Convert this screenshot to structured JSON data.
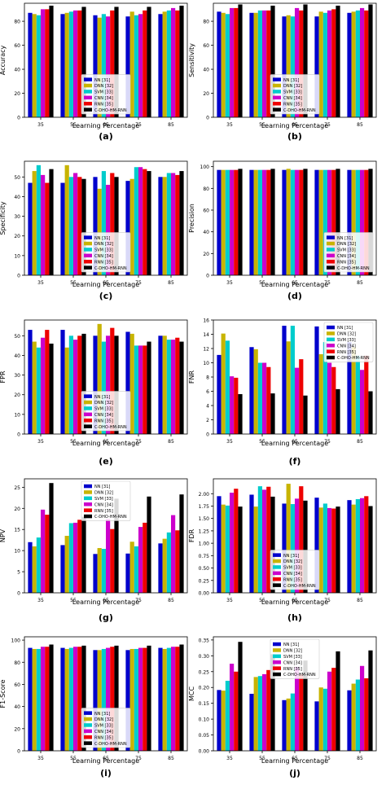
{
  "figure": {
    "series_colors": [
      "#0000cc",
      "#c8b400",
      "#00cccc",
      "#cc00cc",
      "#ee0000",
      "#000000"
    ],
    "legend_labels": [
      "NN [31]",
      "DNN [32]",
      "SVM [33]",
      "CNN [34]",
      "RNN [35]",
      "C-DHO-HM-RNN"
    ]
  },
  "chart_data": [
    {
      "type": "bar",
      "panel_label": "(a)",
      "ylabel": "Accuracy",
      "xlabel": "Learning Percentage",
      "categories": [
        "35",
        "55",
        "65",
        "75",
        "85"
      ],
      "ylim": [
        0,
        95
      ],
      "yticks": [
        0,
        20,
        40,
        60,
        80
      ],
      "ytick_labels": [
        "0",
        "20",
        "40",
        "60",
        "80"
      ],
      "legend_position": "bottom-center",
      "series": [
        {
          "name": "NN [31]",
          "values": [
            87,
            86,
            85,
            84,
            86
          ]
        },
        {
          "name": "DNN [32]",
          "values": [
            86,
            87,
            83,
            88,
            88
          ]
        },
        {
          "name": "SVM [33]",
          "values": [
            85,
            88,
            86,
            85,
            89
          ]
        },
        {
          "name": "CNN [34]",
          "values": [
            90,
            89,
            84,
            86,
            91
          ]
        },
        {
          "name": "RNN [35]",
          "values": [
            90,
            89,
            89,
            89,
            89
          ]
        },
        {
          "name": "C-DHO-HM-RNN",
          "values": [
            93,
            92,
            92,
            92,
            93
          ]
        }
      ]
    },
    {
      "type": "bar",
      "panel_label": "(b)",
      "ylabel": "Sensitivity",
      "xlabel": "Learning Percentage",
      "categories": [
        "35",
        "55",
        "65",
        "75",
        "85"
      ],
      "ylim": [
        0,
        95
      ],
      "yticks": [
        0,
        20,
        40,
        60,
        80
      ],
      "ytick_labels": [
        "0",
        "20",
        "40",
        "60",
        "80"
      ],
      "legend_position": "bottom-center",
      "series": [
        {
          "name": "NN [31]",
          "values": [
            88,
            87,
            84,
            84,
            87
          ]
        },
        {
          "name": "DNN [32]",
          "values": [
            87,
            87,
            85,
            88,
            88
          ]
        },
        {
          "name": "SVM [33]",
          "values": [
            86,
            89,
            84,
            87,
            89
          ]
        },
        {
          "name": "CNN [34]",
          "values": [
            91,
            89,
            91,
            89,
            91
          ]
        },
        {
          "name": "RNN [35]",
          "values": [
            91,
            89,
            89,
            90,
            89
          ]
        },
        {
          "name": "C-DHO-HM-RNN",
          "values": [
            94,
            93,
            94,
            93,
            94
          ]
        }
      ]
    },
    {
      "type": "bar",
      "panel_label": "(c)",
      "ylabel": "Specificity",
      "xlabel": "Learning Percentage",
      "categories": [
        "35",
        "55",
        "65",
        "75",
        "85"
      ],
      "ylim": [
        0,
        58
      ],
      "yticks": [
        0,
        10,
        20,
        30,
        40,
        50
      ],
      "ytick_labels": [
        "0",
        "10",
        "20",
        "30",
        "40",
        "50"
      ],
      "legend_position": "bottom-center",
      "series": [
        {
          "name": "NN [31]",
          "values": [
            47,
            47,
            50,
            48,
            50
          ]
        },
        {
          "name": "DNN [32]",
          "values": [
            53,
            56,
            44,
            49,
            50
          ]
        },
        {
          "name": "SVM [33]",
          "values": [
            56,
            50,
            53,
            55,
            52
          ]
        },
        {
          "name": "CNN [34]",
          "values": [
            51,
            52,
            46,
            55,
            52
          ]
        },
        {
          "name": "RNN [35]",
          "values": [
            47,
            50,
            52,
            54,
            51
          ]
        },
        {
          "name": "C-DHO-HM-RNN",
          "values": [
            54,
            49,
            50,
            53,
            53
          ]
        }
      ]
    },
    {
      "type": "bar",
      "panel_label": "(d)",
      "ylabel": "Precision",
      "xlabel": "Learning Percentage",
      "categories": [
        "35",
        "55",
        "65",
        "75",
        "85"
      ],
      "ylim": [
        0,
        105
      ],
      "yticks": [
        0,
        20,
        40,
        60,
        80,
        100
      ],
      "ytick_labels": [
        "0",
        "20",
        "40",
        "60",
        "80",
        "100"
      ],
      "legend_position": "bottom-right",
      "series": [
        {
          "name": "NN [31]",
          "values": [
            97,
            97,
            97,
            97,
            97
          ]
        },
        {
          "name": "DNN [32]",
          "values": [
            97,
            97,
            98,
            97,
            97
          ]
        },
        {
          "name": "SVM [33]",
          "values": [
            97,
            97,
            97,
            97,
            97
          ]
        },
        {
          "name": "CNN [34]",
          "values": [
            97,
            97,
            97,
            97,
            97
          ]
        },
        {
          "name": "RNN [35]",
          "values": [
            97,
            97,
            97,
            97,
            97
          ]
        },
        {
          "name": "C-DHO-HM-RNN",
          "values": [
            98,
            98,
            98,
            98,
            98
          ]
        }
      ]
    },
    {
      "type": "bar",
      "panel_label": "(e)",
      "ylabel": "FPR",
      "xlabel": "Learning Percentage",
      "categories": [
        "35",
        "55",
        "65",
        "75",
        "85"
      ],
      "ylim": [
        0,
        58
      ],
      "yticks": [
        0,
        10,
        20,
        30,
        40,
        50
      ],
      "ytick_labels": [
        "0",
        "10",
        "20",
        "30",
        "40",
        "50"
      ],
      "legend_position": "bottom-center",
      "series": [
        {
          "name": "NN [31]",
          "values": [
            53,
            53,
            50,
            52,
            50
          ]
        },
        {
          "name": "DNN [32]",
          "values": [
            47,
            44,
            56,
            51,
            50
          ]
        },
        {
          "name": "SVM [33]",
          "values": [
            44,
            50,
            47,
            45,
            48
          ]
        },
        {
          "name": "CNN [34]",
          "values": [
            49,
            48,
            50,
            45,
            48
          ]
        },
        {
          "name": "RNN [35]",
          "values": [
            53,
            50,
            54,
            45,
            49
          ]
        },
        {
          "name": "C-DHO-HM-RNN",
          "values": [
            46,
            51,
            50,
            47,
            47
          ]
        }
      ]
    },
    {
      "type": "bar",
      "panel_label": "(f)",
      "ylabel": "FNR",
      "xlabel": "Learning Percentage",
      "categories": [
        "35",
        "55",
        "65",
        "75",
        "85"
      ],
      "ylim": [
        0,
        16
      ],
      "yticks": [
        0,
        2,
        4,
        6,
        8,
        10,
        12,
        14,
        16
      ],
      "ytick_labels": [
        "0",
        "2",
        "4",
        "6",
        "8",
        "10",
        "12",
        "14",
        "16"
      ],
      "legend_position": "top-right",
      "series": [
        {
          "name": "NN [31]",
          "values": [
            11.1,
            12.2,
            15.2,
            15.1,
            12.9
          ]
        },
        {
          "name": "DNN [32]",
          "values": [
            14.1,
            11.9,
            13.0,
            11.2,
            12.2
          ]
        },
        {
          "name": "SVM [33]",
          "values": [
            13.1,
            10.0,
            15.2,
            12.9,
            11.0
          ]
        },
        {
          "name": "CNN [34]",
          "values": [
            8.1,
            10.0,
            9.3,
            10.0,
            9.0
          ]
        },
        {
          "name": "RNN [35]",
          "values": [
            7.9,
            9.4,
            10.5,
            9.4,
            11.0
          ]
        },
        {
          "name": "C-DHO-HM-RNN",
          "values": [
            5.6,
            5.7,
            5.4,
            6.3,
            6.0
          ]
        }
      ]
    },
    {
      "type": "bar",
      "panel_label": "(g)",
      "ylabel": "NPV",
      "xlabel": "Learning Percentage",
      "categories": [
        "35",
        "55",
        "65",
        "75",
        "85"
      ],
      "ylim": [
        0,
        27
      ],
      "yticks": [
        0,
        5,
        10,
        15,
        20,
        25
      ],
      "ytick_labels": [
        "0",
        "5",
        "10",
        "15",
        "20",
        "25"
      ],
      "legend_position": "top-center",
      "series": [
        {
          "name": "NN [31]",
          "values": [
            12.0,
            11.3,
            9.2,
            9.3,
            11.7
          ]
        },
        {
          "name": "DNN [32]",
          "values": [
            11.0,
            13.5,
            10.6,
            12.1,
            12.8
          ]
        },
        {
          "name": "SVM [33]",
          "values": [
            13.1,
            16.5,
            10.4,
            11.0,
            14.3
          ]
        },
        {
          "name": "CNN [34]",
          "values": [
            19.7,
            16.6,
            17.5,
            15.6,
            18.4
          ]
        },
        {
          "name": "RNN [35]",
          "values": [
            18.5,
            17.3,
            15.1,
            16.6,
            14.8
          ]
        },
        {
          "name": "C-DHO-HM-RNN",
          "values": [
            26.0,
            18.0,
            22.3,
            22.8,
            23.3
          ]
        }
      ]
    },
    {
      "type": "bar",
      "panel_label": "(h)",
      "ylabel": "FDR",
      "xlabel": "Learning Percentage",
      "categories": [
        "35",
        "55",
        "65",
        "75",
        "85"
      ],
      "ylim": [
        0,
        2.3
      ],
      "yticks": [
        0,
        0.25,
        0.5,
        0.75,
        1.0,
        1.25,
        1.5,
        1.75,
        2.0
      ],
      "ytick_labels": [
        "0.00",
        "0.25",
        "0.50",
        "0.75",
        "1.00",
        "1.25",
        "1.50",
        "1.75",
        "2.00"
      ],
      "legend_position": "bottom-center",
      "series": [
        {
          "name": "NN [31]",
          "values": [
            1.95,
            1.98,
            1.8,
            1.92,
            1.87
          ]
        },
        {
          "name": "DNN [32]",
          "values": [
            1.78,
            1.74,
            2.2,
            1.72,
            1.78
          ]
        },
        {
          "name": "SVM [33]",
          "values": [
            1.76,
            2.15,
            1.79,
            1.8,
            1.89
          ]
        },
        {
          "name": "CNN [34]",
          "values": [
            2.02,
            2.08,
            1.9,
            1.71,
            1.91
          ]
        },
        {
          "name": "RNN [35]",
          "values": [
            2.1,
            2.14,
            2.15,
            1.7,
            1.95
          ]
        },
        {
          "name": "C-DHO-HM-RNN",
          "values": [
            1.74,
            1.94,
            1.86,
            1.74,
            1.75
          ]
        }
      ]
    },
    {
      "type": "bar",
      "panel_label": "(i)",
      "ylabel": "F1-Score",
      "xlabel": "Learning Percentage",
      "categories": [
        "35",
        "55",
        "65",
        "75",
        "85"
      ],
      "ylim": [
        0,
        103
      ],
      "yticks": [
        0,
        20,
        40,
        60,
        80,
        100
      ],
      "ytick_labels": [
        "0",
        "20",
        "40",
        "60",
        "80",
        "100"
      ],
      "legend_position": "bottom-center",
      "series": [
        {
          "name": "NN [31]",
          "values": [
            93,
            93,
            91,
            91,
            93
          ]
        },
        {
          "name": "DNN [32]",
          "values": [
            92,
            92,
            91,
            92,
            92
          ]
        },
        {
          "name": "SVM [33]",
          "values": [
            92,
            93,
            92,
            92,
            93
          ]
        },
        {
          "name": "CNN [34]",
          "values": [
            94,
            94,
            93,
            93,
            94
          ]
        },
        {
          "name": "RNN [35]",
          "values": [
            94,
            94,
            94,
            93,
            94
          ]
        },
        {
          "name": "C-DHO-HM-RNN",
          "values": [
            96,
            95,
            95,
            95,
            96
          ]
        }
      ]
    },
    {
      "type": "bar",
      "panel_label": "(j)",
      "ylabel": "MCC",
      "xlabel": "Learning Percentage",
      "categories": [
        "35",
        "55",
        "65",
        "75",
        "85"
      ],
      "ylim": [
        0,
        0.36
      ],
      "yticks": [
        0,
        0.05,
        0.1,
        0.15,
        0.2,
        0.25,
        0.3,
        0.35
      ],
      "ytick_labels": [
        "0.00",
        "0.05",
        "0.10",
        "0.15",
        "0.20",
        "0.25",
        "0.30",
        "0.35"
      ],
      "legend_position": "top-center",
      "series": [
        {
          "name": "NN [31]",
          "values": [
            0.192,
            0.18,
            0.16,
            0.156,
            0.191
          ]
        },
        {
          "name": "DNN [32]",
          "values": [
            0.19,
            0.233,
            0.165,
            0.2,
            0.212
          ]
        },
        {
          "name": "SVM [33]",
          "values": [
            0.221,
            0.236,
            0.181,
            0.196,
            0.225
          ]
        },
        {
          "name": "CNN [34]",
          "values": [
            0.275,
            0.242,
            0.265,
            0.25,
            0.268
          ]
        },
        {
          "name": "RNN [35]",
          "values": [
            0.25,
            0.255,
            0.241,
            0.262,
            0.229
          ]
        },
        {
          "name": "C-DHO-HM-RNN",
          "values": [
            0.344,
            0.305,
            0.285,
            0.314,
            0.317
          ]
        }
      ]
    }
  ]
}
